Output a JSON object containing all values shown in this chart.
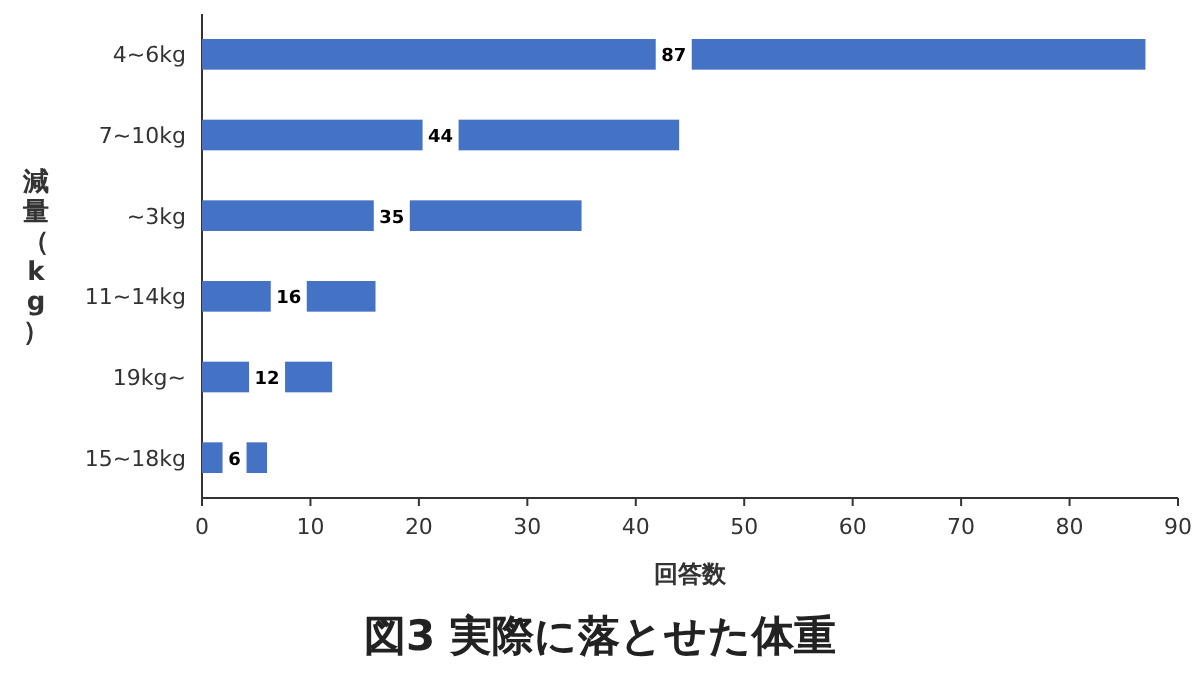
{
  "chart_data": {
    "type": "bar",
    "orientation": "horizontal",
    "title": "図3 実際に落とせた体重",
    "xlabel": "回答数",
    "ylabel": "減量（kg）",
    "categories": [
      "4~6kg",
      "7~10kg",
      "~3kg",
      "11~14kg",
      "19kg~",
      "15~18kg"
    ],
    "values": [
      87,
      44,
      35,
      16,
      12,
      6
    ],
    "color": "#4472c4",
    "xlim": [
      0,
      90
    ],
    "xticks": [
      0,
      10,
      20,
      30,
      40,
      50,
      60,
      70,
      80,
      90
    ],
    "data_labels": true,
    "grid": false
  }
}
